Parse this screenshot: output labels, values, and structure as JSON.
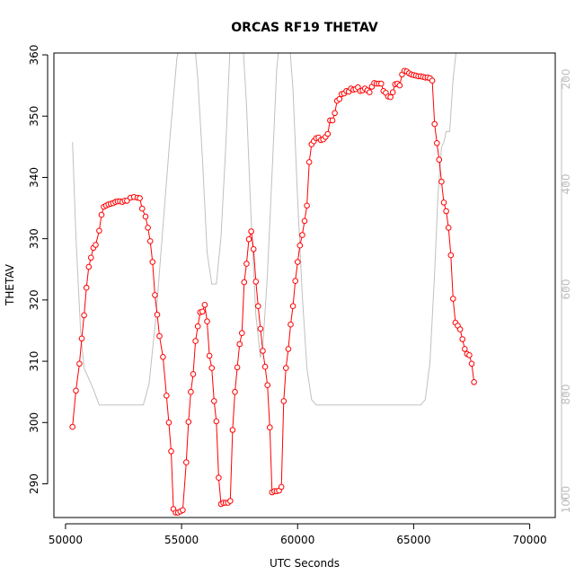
{
  "chart_data": {
    "type": "line",
    "title": "ORCAS RF19 THETAV",
    "xlabel": "UTC Seconds",
    "ylabel": "THETAV",
    "xlim": [
      49500,
      71100
    ],
    "ylim": [
      284.5,
      360.3
    ],
    "x_ticks": [
      50000,
      55000,
      60000,
      65000,
      70000
    ],
    "y_ticks": [
      290,
      300,
      310,
      320,
      330,
      340,
      350,
      360
    ],
    "right_axis": {
      "ticks": [
        200,
        400,
        600,
        800,
        1000
      ],
      "color": "#bdbdbd",
      "inverted": true
    },
    "grid": false,
    "legend": "none",
    "series": [
      {
        "color": "#ff0000",
        "marker": "open-circle",
        "points": [
          [
            50300,
            299.3
          ],
          [
            50450,
            305.2
          ],
          [
            50600,
            309.6
          ],
          [
            50700,
            313.7
          ],
          [
            50800,
            317.5
          ],
          [
            50900,
            322.0
          ],
          [
            51000,
            325.4
          ],
          [
            51100,
            326.9
          ],
          [
            51200,
            328.5
          ],
          [
            51300,
            329.0
          ],
          [
            51450,
            331.3
          ],
          [
            51550,
            333.9
          ],
          [
            51650,
            335.2
          ],
          [
            51750,
            335.4
          ],
          [
            51850,
            335.6
          ],
          [
            51950,
            335.7
          ],
          [
            52050,
            335.8
          ],
          [
            52150,
            336.0
          ],
          [
            52250,
            336.1
          ],
          [
            52350,
            336.1
          ],
          [
            52450,
            336.0
          ],
          [
            52550,
            336.2
          ],
          [
            52650,
            336.2
          ],
          [
            52800,
            336.7
          ],
          [
            52950,
            336.8
          ],
          [
            53100,
            336.7
          ],
          [
            53200,
            336.6
          ],
          [
            53300,
            334.9
          ],
          [
            53450,
            333.6
          ],
          [
            53550,
            331.8
          ],
          [
            53650,
            329.6
          ],
          [
            53750,
            326.2
          ],
          [
            53850,
            320.8
          ],
          [
            53950,
            317.6
          ],
          [
            54050,
            314.1
          ],
          [
            54200,
            310.7
          ],
          [
            54350,
            304.4
          ],
          [
            54450,
            300.0
          ],
          [
            54550,
            295.3
          ],
          [
            54650,
            285.9
          ],
          [
            54750,
            285.3
          ],
          [
            54850,
            285.3
          ],
          [
            54950,
            285.5
          ],
          [
            55050,
            285.7
          ],
          [
            55200,
            293.5
          ],
          [
            55300,
            300.1
          ],
          [
            55400,
            305.0
          ],
          [
            55500,
            307.9
          ],
          [
            55600,
            313.3
          ],
          [
            55700,
            315.7
          ],
          [
            55800,
            318.0
          ],
          [
            55900,
            318.1
          ],
          [
            56000,
            319.2
          ],
          [
            56100,
            316.5
          ],
          [
            56200,
            310.9
          ],
          [
            56300,
            308.9
          ],
          [
            56400,
            303.5
          ],
          [
            56500,
            300.2
          ],
          [
            56600,
            291.0
          ],
          [
            56700,
            286.7
          ],
          [
            56800,
            286.9
          ],
          [
            56900,
            286.9
          ],
          [
            57000,
            286.9
          ],
          [
            57100,
            287.2
          ],
          [
            57200,
            298.8
          ],
          [
            57300,
            305.0
          ],
          [
            57400,
            309.0
          ],
          [
            57500,
            312.8
          ],
          [
            57600,
            314.6
          ],
          [
            57700,
            322.9
          ],
          [
            57800,
            325.9
          ],
          [
            57900,
            329.9
          ],
          [
            58000,
            331.2
          ],
          [
            58100,
            328.3
          ],
          [
            58200,
            323.0
          ],
          [
            58300,
            319.0
          ],
          [
            58400,
            315.3
          ],
          [
            58500,
            311.7
          ],
          [
            58600,
            309.1
          ],
          [
            58700,
            306.1
          ],
          [
            58800,
            299.2
          ],
          [
            58900,
            288.6
          ],
          [
            59000,
            288.8
          ],
          [
            59100,
            288.8
          ],
          [
            59200,
            288.9
          ],
          [
            59300,
            289.5
          ],
          [
            59400,
            303.5
          ],
          [
            59500,
            308.9
          ],
          [
            59600,
            312.0
          ],
          [
            59700,
            316.0
          ],
          [
            59800,
            319.0
          ],
          [
            59900,
            323.1
          ],
          [
            60000,
            326.2
          ],
          [
            60100,
            328.9
          ],
          [
            60200,
            330.6
          ],
          [
            60300,
            332.9
          ],
          [
            60400,
            335.4
          ],
          [
            60500,
            342.5
          ],
          [
            60600,
            345.4
          ],
          [
            60700,
            345.9
          ],
          [
            60800,
            346.4
          ],
          [
            60900,
            346.5
          ],
          [
            61000,
            346.1
          ],
          [
            61100,
            346.2
          ],
          [
            61200,
            346.6
          ],
          [
            61300,
            347.1
          ],
          [
            61400,
            349.3
          ],
          [
            61500,
            349.3
          ],
          [
            61600,
            350.5
          ],
          [
            61700,
            352.5
          ],
          [
            61800,
            352.8
          ],
          [
            61900,
            353.6
          ],
          [
            62000,
            353.7
          ],
          [
            62100,
            354.1
          ],
          [
            62200,
            354.0
          ],
          [
            62300,
            354.5
          ],
          [
            62400,
            354.3
          ],
          [
            62500,
            354.4
          ],
          [
            62600,
            354.7
          ],
          [
            62700,
            354.1
          ],
          [
            62800,
            354.2
          ],
          [
            62900,
            354.5
          ],
          [
            63000,
            354.2
          ],
          [
            63100,
            353.9
          ],
          [
            63200,
            354.8
          ],
          [
            63300,
            355.4
          ],
          [
            63400,
            355.3
          ],
          [
            63500,
            355.3
          ],
          [
            63600,
            355.3
          ],
          [
            63700,
            354.1
          ],
          [
            63800,
            353.8
          ],
          [
            63900,
            353.2
          ],
          [
            64000,
            353.1
          ],
          [
            64100,
            353.9
          ],
          [
            64200,
            355.2
          ],
          [
            64300,
            355.3
          ],
          [
            64400,
            355.0
          ],
          [
            64500,
            356.8
          ],
          [
            64600,
            357.4
          ],
          [
            64700,
            357.3
          ],
          [
            64800,
            357.0
          ],
          [
            64900,
            356.8
          ],
          [
            65000,
            356.7
          ],
          [
            65100,
            356.6
          ],
          [
            65200,
            356.5
          ],
          [
            65300,
            356.5
          ],
          [
            65400,
            356.4
          ],
          [
            65500,
            356.3
          ],
          [
            65600,
            356.3
          ],
          [
            65700,
            356.2
          ],
          [
            65800,
            355.8
          ],
          [
            65900,
            348.7
          ],
          [
            66000,
            345.6
          ],
          [
            66100,
            342.9
          ],
          [
            66200,
            339.3
          ],
          [
            66300,
            335.9
          ],
          [
            66400,
            334.5
          ],
          [
            66500,
            331.8
          ],
          [
            66600,
            327.3
          ],
          [
            66700,
            320.2
          ],
          [
            66800,
            316.3
          ],
          [
            66900,
            315.8
          ],
          [
            67000,
            315.2
          ],
          [
            67100,
            313.6
          ],
          [
            67200,
            312.0
          ],
          [
            67300,
            311.2
          ],
          [
            67400,
            311.0
          ],
          [
            67500,
            309.6
          ],
          [
            67600,
            306.6
          ]
        ]
      },
      {
        "color": "#c0c0c0",
        "axis": "right",
        "marker": "none",
        "points": [
          [
            50300,
            320
          ],
          [
            50450,
            500
          ],
          [
            50650,
            680
          ],
          [
            50800,
            750
          ],
          [
            51000,
            770
          ],
          [
            51200,
            790
          ],
          [
            51450,
            820
          ],
          [
            51900,
            820
          ],
          [
            52800,
            820
          ],
          [
            53350,
            820
          ],
          [
            53600,
            780
          ],
          [
            53900,
            650
          ],
          [
            54200,
            480
          ],
          [
            54500,
            310
          ],
          [
            54800,
            160
          ],
          [
            55100,
            100
          ],
          [
            55500,
            100
          ],
          [
            55700,
            200
          ],
          [
            55900,
            350
          ],
          [
            56100,
            530
          ],
          [
            56300,
            590
          ],
          [
            56500,
            590
          ],
          [
            56700,
            500
          ],
          [
            56900,
            330
          ],
          [
            57100,
            130
          ],
          [
            57300,
            100
          ],
          [
            57600,
            100
          ],
          [
            57800,
            250
          ],
          [
            58000,
            470
          ],
          [
            58200,
            650
          ],
          [
            58400,
            730
          ],
          [
            58500,
            710
          ],
          [
            58700,
            570
          ],
          [
            58900,
            380
          ],
          [
            59100,
            180
          ],
          [
            59300,
            100
          ],
          [
            59600,
            100
          ],
          [
            59800,
            220
          ],
          [
            60000,
            430
          ],
          [
            60200,
            610
          ],
          [
            60400,
            750
          ],
          [
            60600,
            810
          ],
          [
            60800,
            820
          ],
          [
            61500,
            820
          ],
          [
            62500,
            820
          ],
          [
            63500,
            820
          ],
          [
            64500,
            820
          ],
          [
            65300,
            820
          ],
          [
            65500,
            810
          ],
          [
            65700,
            740
          ],
          [
            65900,
            570
          ],
          [
            66050,
            420
          ],
          [
            66200,
            330
          ],
          [
            66300,
            320
          ],
          [
            66400,
            300
          ],
          [
            66550,
            300
          ],
          [
            66700,
            200
          ],
          [
            66850,
            140
          ],
          [
            67000,
            100
          ]
        ]
      }
    ]
  }
}
